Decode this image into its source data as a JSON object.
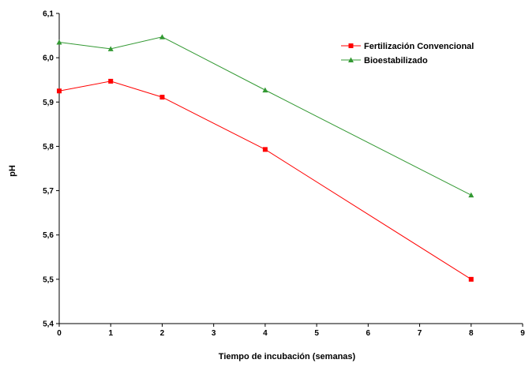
{
  "chart_data": {
    "type": "line",
    "title": "",
    "xlabel": "Tiempo de incubación (semanas)",
    "ylabel": "pH",
    "xlim": [
      0,
      9
    ],
    "ylim": [
      5.4,
      6.1
    ],
    "x_ticks": [
      0,
      1,
      2,
      3,
      4,
      5,
      6,
      7,
      8,
      9
    ],
    "x_tick_labels": [
      "0",
      "1",
      "2",
      "3",
      "4",
      "5",
      "6",
      "7",
      "8",
      "9"
    ],
    "y_ticks": [
      5.4,
      5.5,
      5.6,
      5.7,
      5.8,
      5.9,
      6.0,
      6.1
    ],
    "y_tick_labels": [
      "5,4",
      "5,5",
      "5,6",
      "5,7",
      "5,8",
      "5,9",
      "6,0",
      "6,1"
    ],
    "grid": false,
    "legend_position": "top-right",
    "series": [
      {
        "name": "Fertilización Convencional",
        "color": "#ff0000",
        "marker": "square",
        "x": [
          0,
          1,
          2,
          4,
          8
        ],
        "values": [
          5.925,
          5.947,
          5.911,
          5.793,
          5.5
        ]
      },
      {
        "name": "Bioestabilizado",
        "color": "#339933",
        "marker": "triangle",
        "x": [
          0,
          1,
          2,
          4,
          8
        ],
        "values": [
          6.035,
          6.02,
          6.047,
          5.927,
          5.69
        ]
      }
    ]
  }
}
